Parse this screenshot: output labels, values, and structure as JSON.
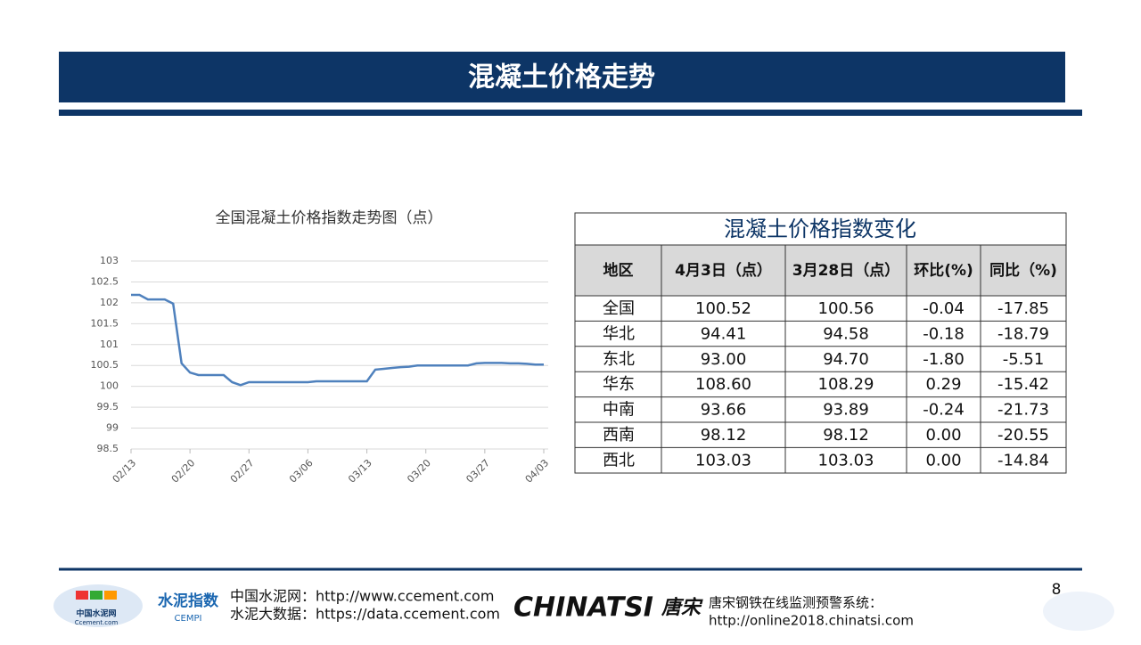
{
  "header": {
    "title": "混凝土价格走势"
  },
  "chart_data": {
    "type": "line",
    "title": "全国混凝土价格指数走势图（点）",
    "color": "#4f81bd",
    "grid": true,
    "categories": [
      "02/13",
      null,
      null,
      null,
      null,
      null,
      null,
      "02/20",
      null,
      null,
      null,
      null,
      null,
      null,
      "02/27",
      null,
      null,
      null,
      null,
      null,
      null,
      "03/06",
      null,
      null,
      null,
      null,
      null,
      null,
      "03/13",
      null,
      null,
      null,
      null,
      null,
      null,
      "03/20",
      null,
      null,
      null,
      null,
      null,
      null,
      "03/27",
      null,
      null,
      null,
      null,
      null,
      null,
      "04/03"
    ],
    "values": [
      102.19,
      102.19,
      102.08,
      102.08,
      102.08,
      101.98,
      100.55,
      100.33,
      100.27,
      100.27,
      100.27,
      100.27,
      100.1,
      100.03,
      100.1,
      100.1,
      100.1,
      100.1,
      100.1,
      100.1,
      100.1,
      100.1,
      100.12,
      100.12,
      100.12,
      100.12,
      100.12,
      100.12,
      100.12,
      100.4,
      100.42,
      100.44,
      100.46,
      100.47,
      100.5,
      100.5,
      100.5,
      100.5,
      100.5,
      100.5,
      100.5,
      100.55,
      100.56,
      100.56,
      100.56,
      100.55,
      100.55,
      100.54,
      100.52,
      100.52
    ],
    "ylim": [
      98.5,
      103
    ],
    "yticks": [
      98.5,
      99,
      99.5,
      100,
      100.5,
      101,
      101.5,
      102,
      102.5,
      103
    ]
  },
  "table": {
    "title": "混凝土价格指数变化",
    "headers": [
      "地区",
      "4月3日（点）",
      "3月28日（点）",
      "环比(%)",
      "同比（%)"
    ],
    "rows": [
      [
        "全国",
        "100.52",
        "100.56",
        "-0.04",
        "-17.85"
      ],
      [
        "华北",
        "94.41",
        "94.58",
        "-0.18",
        "-18.79"
      ],
      [
        "东北",
        "93.00",
        "94.70",
        "-1.80",
        "-5.51"
      ],
      [
        "华东",
        "108.60",
        "108.29",
        "0.29",
        "-15.42"
      ],
      [
        "中南",
        "93.66",
        "93.89",
        "-0.24",
        "-21.73"
      ],
      [
        "西南",
        "98.12",
        "98.12",
        "0.00",
        "-20.55"
      ],
      [
        "西北",
        "103.03",
        "103.03",
        "0.00",
        "-14.84"
      ]
    ]
  },
  "footer": {
    "logo1": "中国水泥网",
    "logo1_sub": "Ccement.com",
    "logo2": "水泥指数",
    "logo2_sub": "CEMPI",
    "line1": "中国水泥网：http://www.ccement.com",
    "line2": "水泥大数据：https://data.ccement.com",
    "brand": "CHINATSI",
    "brand_cn": "唐宋",
    "line3": "唐宋钢铁在线监测预警系统：",
    "line4": "http://online2018.chinatsi.com"
  },
  "page_number": "8"
}
